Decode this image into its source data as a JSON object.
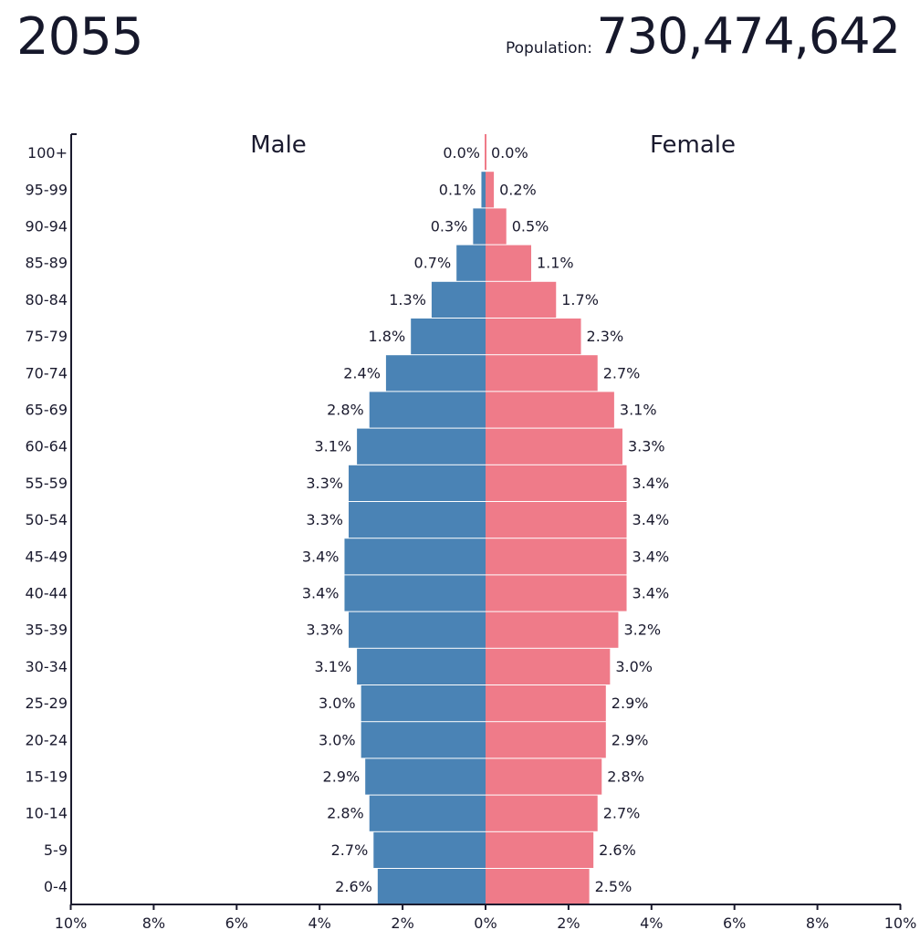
{
  "header": {
    "year": "2055",
    "population_label": "Population:",
    "population_value": "730,474,642"
  },
  "colors": {
    "male": "#4a83b5",
    "female": "#ef7b89",
    "axis": "#1a1a2e",
    "text": "#1a1a2e"
  },
  "chart_data": {
    "type": "bar",
    "orientation": "horizontal-pyramid",
    "title": "",
    "series": [
      {
        "name": "Male",
        "side": "left",
        "values": [
          0.0,
          0.1,
          0.3,
          0.7,
          1.3,
          1.8,
          2.4,
          2.8,
          3.1,
          3.3,
          3.3,
          3.4,
          3.4,
          3.3,
          3.1,
          3.0,
          3.0,
          2.9,
          2.8,
          2.7,
          2.6
        ]
      },
      {
        "name": "Female",
        "side": "right",
        "values": [
          0.0,
          0.2,
          0.5,
          1.1,
          1.7,
          2.3,
          2.7,
          3.1,
          3.3,
          3.4,
          3.4,
          3.4,
          3.4,
          3.2,
          3.0,
          2.9,
          2.9,
          2.8,
          2.7,
          2.6,
          2.5
        ]
      }
    ],
    "categories": [
      "100+",
      "95-99",
      "90-94",
      "85-89",
      "80-84",
      "75-79",
      "70-74",
      "65-69",
      "60-64",
      "55-59",
      "50-54",
      "45-49",
      "40-44",
      "35-39",
      "30-34",
      "25-29",
      "20-24",
      "15-19",
      "10-14",
      "5-9",
      "0-4"
    ],
    "x_ticks": [
      "10%",
      "8%",
      "6%",
      "4%",
      "2%",
      "0%",
      "2%",
      "4%",
      "6%",
      "8%",
      "10%"
    ],
    "xlim": [
      -10,
      10
    ],
    "value_suffix": "%",
    "grid": false
  }
}
